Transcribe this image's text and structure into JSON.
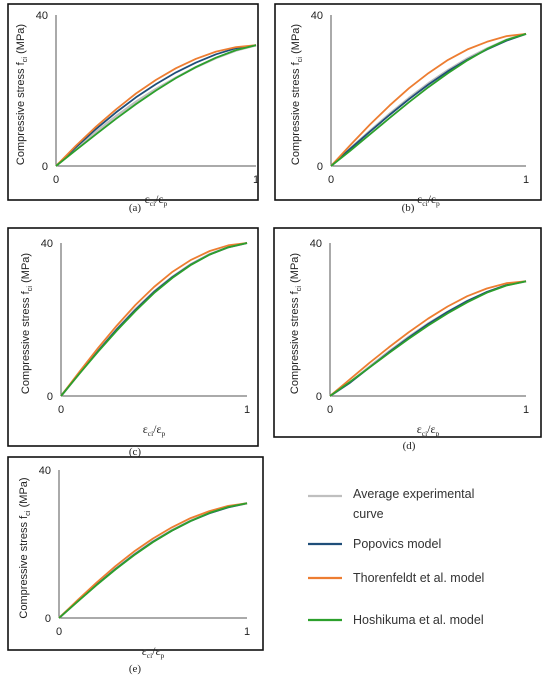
{
  "figure": {
    "legend": [
      {
        "key": "avg",
        "lines": [
          "Average experimental",
          "curve"
        ],
        "color": "#bfbfbf"
      },
      {
        "key": "pop",
        "lines": [
          "Popovics model"
        ],
        "color": "#1f4e79"
      },
      {
        "key": "tho",
        "lines": [
          "Thorenfeldt et al. model"
        ],
        "color": "#ed7d31"
      },
      {
        "key": "hos",
        "lines": [
          "Hoshikuma et al. model"
        ],
        "color": "#2ca02c"
      }
    ]
  },
  "chart_data": [
    {
      "type": "line",
      "caption": "(a)",
      "ylabel": {
        "main": "Compressive stress f",
        "sub": "ci",
        "unit": " (MPa)"
      },
      "xlabel": {
        "e1": "ε",
        "s1": "ci",
        "mid": "/ε",
        "s2": "p"
      },
      "xticks": [
        "0",
        "1"
      ],
      "yticks": [
        "0",
        "40"
      ],
      "xlim": [
        0,
        1
      ],
      "ylim": [
        0,
        40
      ],
      "peak": 32,
      "series": [
        {
          "key": "avg",
          "x": [
            0,
            0.1,
            0.2,
            0.3,
            0.4,
            0.5,
            0.6,
            0.7,
            0.8,
            0.9,
            1.0
          ],
          "y": [
            0,
            4.6,
            9.0,
            13.2,
            17.0,
            20.4,
            23.4,
            26.2,
            28.6,
            30.6,
            32.0
          ]
        },
        {
          "key": "pop",
          "x": [
            0,
            0.1,
            0.2,
            0.3,
            0.4,
            0.5,
            0.6,
            0.7,
            0.8,
            0.9,
            1.0
          ],
          "y": [
            0,
            5.0,
            9.8,
            14.2,
            18.2,
            21.7,
            24.8,
            27.4,
            29.6,
            31.2,
            32.0
          ]
        },
        {
          "key": "tho",
          "x": [
            0,
            0.1,
            0.2,
            0.3,
            0.4,
            0.5,
            0.6,
            0.7,
            0.8,
            0.9,
            1.0
          ],
          "y": [
            0,
            5.4,
            10.4,
            15.0,
            19.2,
            22.8,
            25.9,
            28.4,
            30.3,
            31.5,
            32.0
          ]
        },
        {
          "key": "hos",
          "x": [
            0,
            0.1,
            0.2,
            0.3,
            0.4,
            0.5,
            0.6,
            0.7,
            0.8,
            0.9,
            1.0
          ],
          "y": [
            0,
            4.2,
            8.4,
            12.5,
            16.4,
            20.0,
            23.3,
            26.2,
            28.7,
            30.7,
            32.0
          ]
        }
      ]
    },
    {
      "type": "line",
      "caption": "(b)",
      "ylabel": {
        "main": "Compressive stress f",
        "sub": "ci",
        "unit": " (MPa)"
      },
      "xlabel": {
        "e1": "ε",
        "s1": "ci",
        "mid": "/ε",
        "s2": "p"
      },
      "xticks": [
        "0",
        "1"
      ],
      "yticks": [
        "0",
        "40"
      ],
      "xlim": [
        0,
        1
      ],
      "ylim": [
        0,
        40
      ],
      "peak": 35,
      "series": [
        {
          "key": "avg",
          "x": [
            0,
            0.1,
            0.2,
            0.3,
            0.4,
            0.5,
            0.6,
            0.7,
            0.8,
            0.9,
            1.0
          ],
          "y": [
            0,
            4.7,
            9.3,
            13.8,
            18.0,
            21.9,
            25.4,
            28.5,
            31.1,
            33.4,
            35.0
          ]
        },
        {
          "key": "pop",
          "x": [
            0,
            0.1,
            0.2,
            0.3,
            0.4,
            0.5,
            0.6,
            0.7,
            0.8,
            0.9,
            1.0
          ],
          "y": [
            0,
            4.6,
            9.1,
            13.5,
            17.7,
            21.6,
            25.1,
            28.2,
            30.9,
            33.2,
            35.0
          ]
        },
        {
          "key": "tho",
          "x": [
            0,
            0.1,
            0.2,
            0.3,
            0.4,
            0.5,
            0.6,
            0.7,
            0.8,
            0.9,
            1.0
          ],
          "y": [
            0,
            5.6,
            11.0,
            16.0,
            20.6,
            24.6,
            28.1,
            30.9,
            32.9,
            34.4,
            35.0
          ]
        },
        {
          "key": "hos",
          "x": [
            0,
            0.1,
            0.2,
            0.3,
            0.4,
            0.5,
            0.6,
            0.7,
            0.8,
            0.9,
            1.0
          ],
          "y": [
            0,
            4.1,
            8.4,
            12.7,
            16.9,
            20.9,
            24.6,
            28.0,
            31.0,
            33.4,
            35.0
          ]
        }
      ]
    },
    {
      "type": "line",
      "caption": "(c)",
      "ylabel": {
        "main": "Compressive stress f",
        "sub": "ci",
        "unit": " (MPa)"
      },
      "xlabel": {
        "e1": "ε",
        "s1": "ci",
        "mid": "/ε",
        "s2": "p"
      },
      "xticks": [
        "0",
        "1"
      ],
      "yticks": [
        "0",
        "40"
      ],
      "xlim": [
        0,
        1
      ],
      "ylim": [
        0,
        40
      ],
      "peak": 40,
      "series": [
        {
          "key": "avg",
          "x": [
            0,
            0.1,
            0.2,
            0.3,
            0.4,
            0.5,
            0.6,
            0.7,
            0.8,
            0.9,
            1.0
          ],
          "y": [
            0,
            6.0,
            11.9,
            17.5,
            22.7,
            27.3,
            31.2,
            34.5,
            37.1,
            38.9,
            40.0
          ]
        },
        {
          "key": "pop",
          "x": [
            0,
            0.1,
            0.2,
            0.3,
            0.4,
            0.5,
            0.6,
            0.7,
            0.8,
            0.9,
            1.0
          ],
          "y": [
            0,
            6.0,
            11.8,
            17.4,
            22.5,
            27.2,
            31.1,
            34.4,
            37.0,
            38.9,
            40.0
          ]
        },
        {
          "key": "tho",
          "x": [
            0,
            0.1,
            0.2,
            0.3,
            0.4,
            0.5,
            0.6,
            0.7,
            0.8,
            0.9,
            1.0
          ],
          "y": [
            0,
            6.4,
            12.6,
            18.4,
            23.8,
            28.5,
            32.5,
            35.6,
            37.9,
            39.4,
            40.0
          ]
        },
        {
          "key": "hos",
          "x": [
            0,
            0.1,
            0.2,
            0.3,
            0.4,
            0.5,
            0.6,
            0.7,
            0.8,
            0.9,
            1.0
          ],
          "y": [
            0,
            5.9,
            11.6,
            17.1,
            22.2,
            26.9,
            30.9,
            34.3,
            37.0,
            38.9,
            40.0
          ]
        }
      ]
    },
    {
      "type": "line",
      "caption": "(d)",
      "ylabel": {
        "main": "Compressive stress f",
        "sub": "ci",
        "unit": " (MPa)"
      },
      "xlabel": {
        "e1": "ε",
        "s1": "ci",
        "mid": "/ε",
        "s2": "p"
      },
      "xticks": [
        "0",
        "1"
      ],
      "yticks": [
        "0",
        "40"
      ],
      "xlim": [
        0,
        1
      ],
      "ylim": [
        0,
        40
      ],
      "peak": 30,
      "series": [
        {
          "key": "avg",
          "x": [
            0,
            0.1,
            0.2,
            0.3,
            0.4,
            0.5,
            0.6,
            0.7,
            0.8,
            0.9,
            1.0
          ],
          "y": [
            0,
            3.5,
            7.6,
            11.6,
            15.4,
            18.9,
            22.0,
            24.8,
            27.1,
            29.0,
            30.0
          ]
        },
        {
          "key": "pop",
          "x": [
            0,
            0.1,
            0.2,
            0.3,
            0.4,
            0.5,
            0.6,
            0.7,
            0.8,
            0.9,
            1.0
          ],
          "y": [
            0,
            3.4,
            7.4,
            11.4,
            15.2,
            18.8,
            22.0,
            24.8,
            27.2,
            29.0,
            30.0
          ]
        },
        {
          "key": "tho",
          "x": [
            0,
            0.1,
            0.2,
            0.3,
            0.4,
            0.5,
            0.6,
            0.7,
            0.8,
            0.9,
            1.0
          ],
          "y": [
            0,
            4.3,
            8.6,
            12.7,
            16.6,
            20.2,
            23.4,
            26.1,
            28.1,
            29.5,
            30.0
          ]
        },
        {
          "key": "hos",
          "x": [
            0,
            0.1,
            0.2,
            0.3,
            0.4,
            0.5,
            0.6,
            0.7,
            0.8,
            0.9,
            1.0
          ],
          "y": [
            0,
            3.6,
            7.4,
            11.2,
            14.9,
            18.4,
            21.6,
            24.5,
            27.0,
            28.9,
            30.0
          ]
        }
      ]
    },
    {
      "type": "line",
      "caption": "(e)",
      "ylabel": {
        "main": "Compressive stress f",
        "sub": "ci",
        "unit": " (MPa)"
      },
      "xlabel": {
        "e1": "ε",
        "s1": "ci",
        "mid": "/ε",
        "s2": "p"
      },
      "xticks": [
        "0",
        "1"
      ],
      "yticks": [
        "0",
        "40"
      ],
      "xlim": [
        0,
        1
      ],
      "ylim": [
        0,
        40
      ],
      "peak": 31,
      "series": [
        {
          "key": "avg",
          "x": [
            0,
            0.1,
            0.2,
            0.3,
            0.4,
            0.5,
            0.6,
            0.7,
            0.8,
            0.9,
            1.0
          ],
          "y": [
            0,
            4.6,
            9.1,
            13.3,
            17.2,
            20.7,
            23.7,
            26.3,
            28.4,
            30.0,
            31.0
          ]
        },
        {
          "key": "pop",
          "x": [
            0,
            0.1,
            0.2,
            0.3,
            0.4,
            0.5,
            0.6,
            0.7,
            0.8,
            0.9,
            1.0
          ],
          "y": [
            0,
            4.6,
            9.0,
            13.2,
            17.1,
            20.6,
            23.6,
            26.2,
            28.3,
            29.9,
            31.0
          ]
        },
        {
          "key": "tho",
          "x": [
            0,
            0.1,
            0.2,
            0.3,
            0.4,
            0.5,
            0.6,
            0.7,
            0.8,
            0.9,
            1.0
          ],
          "y": [
            0,
            4.9,
            9.6,
            14.0,
            18.0,
            21.5,
            24.5,
            27.0,
            28.9,
            30.3,
            31.0
          ]
        },
        {
          "key": "hos",
          "x": [
            0,
            0.1,
            0.2,
            0.3,
            0.4,
            0.5,
            0.6,
            0.7,
            0.8,
            0.9,
            1.0
          ],
          "y": [
            0,
            4.5,
            8.9,
            13.1,
            17.0,
            20.5,
            23.6,
            26.2,
            28.4,
            30.0,
            31.0
          ]
        }
      ]
    }
  ]
}
